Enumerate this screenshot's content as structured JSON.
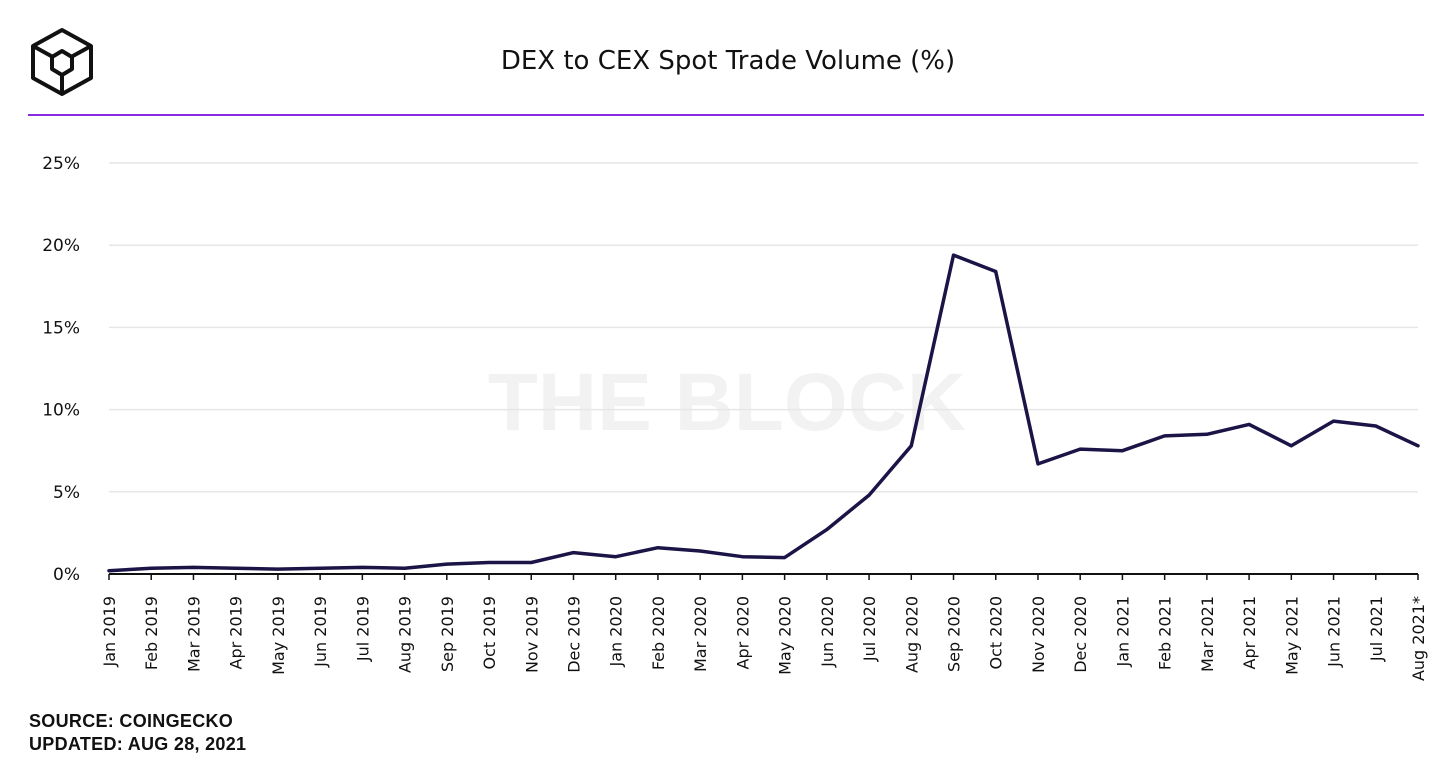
{
  "header": {
    "title": "DEX to CEX Spot Trade Volume (%)",
    "logo_icon": "the-block-cube-logo"
  },
  "footer": {
    "source": "SOURCE: COINGECKO",
    "updated": "UPDATED: AUG 28, 2021"
  },
  "watermark": "THE BLOCK",
  "colors": {
    "line": "#1b1547",
    "title_rule": "#8a2be2",
    "grid": "#e6e6e6",
    "axis": "#111111"
  },
  "chart_data": {
    "type": "line",
    "title": "DEX to CEX Spot Trade Volume (%)",
    "xlabel": "",
    "ylabel": "",
    "ylim": [
      0,
      25
    ],
    "yticks": [
      0,
      5,
      10,
      15,
      20,
      25
    ],
    "ytick_labels": [
      "0%",
      "5%",
      "10%",
      "15%",
      "20%",
      "25%"
    ],
    "grid": "horizontal",
    "categories": [
      "Jan 2019",
      "Feb 2019",
      "Mar 2019",
      "Apr 2019",
      "May 2019",
      "Jun 2019",
      "Jul 2019",
      "Aug 2019",
      "Sep 2019",
      "Oct 2019",
      "Nov 2019",
      "Dec 2019",
      "Jan 2020",
      "Feb 2020",
      "Mar 2020",
      "Apr 2020",
      "May 2020",
      "Jun 2020",
      "Jul 2020",
      "Aug 2020",
      "Sep 2020",
      "Oct 2020",
      "Nov 2020",
      "Dec 2020",
      "Jan 2021",
      "Feb 2021",
      "Mar 2021",
      "Apr 2021",
      "May 2021",
      "Jun 2021",
      "Jul 2021",
      "Aug 2021*"
    ],
    "series": [
      {
        "values": [
          0.2,
          0.35,
          0.4,
          0.35,
          0.3,
          0.35,
          0.4,
          0.35,
          0.6,
          0.7,
          0.7,
          1.3,
          1.05,
          1.6,
          1.4,
          1.05,
          1.0,
          2.7,
          4.8,
          7.8,
          19.4,
          18.4,
          6.7,
          7.6,
          7.5,
          8.4,
          8.5,
          9.1,
          7.8,
          9.3,
          9.0,
          7.8
        ]
      }
    ]
  }
}
